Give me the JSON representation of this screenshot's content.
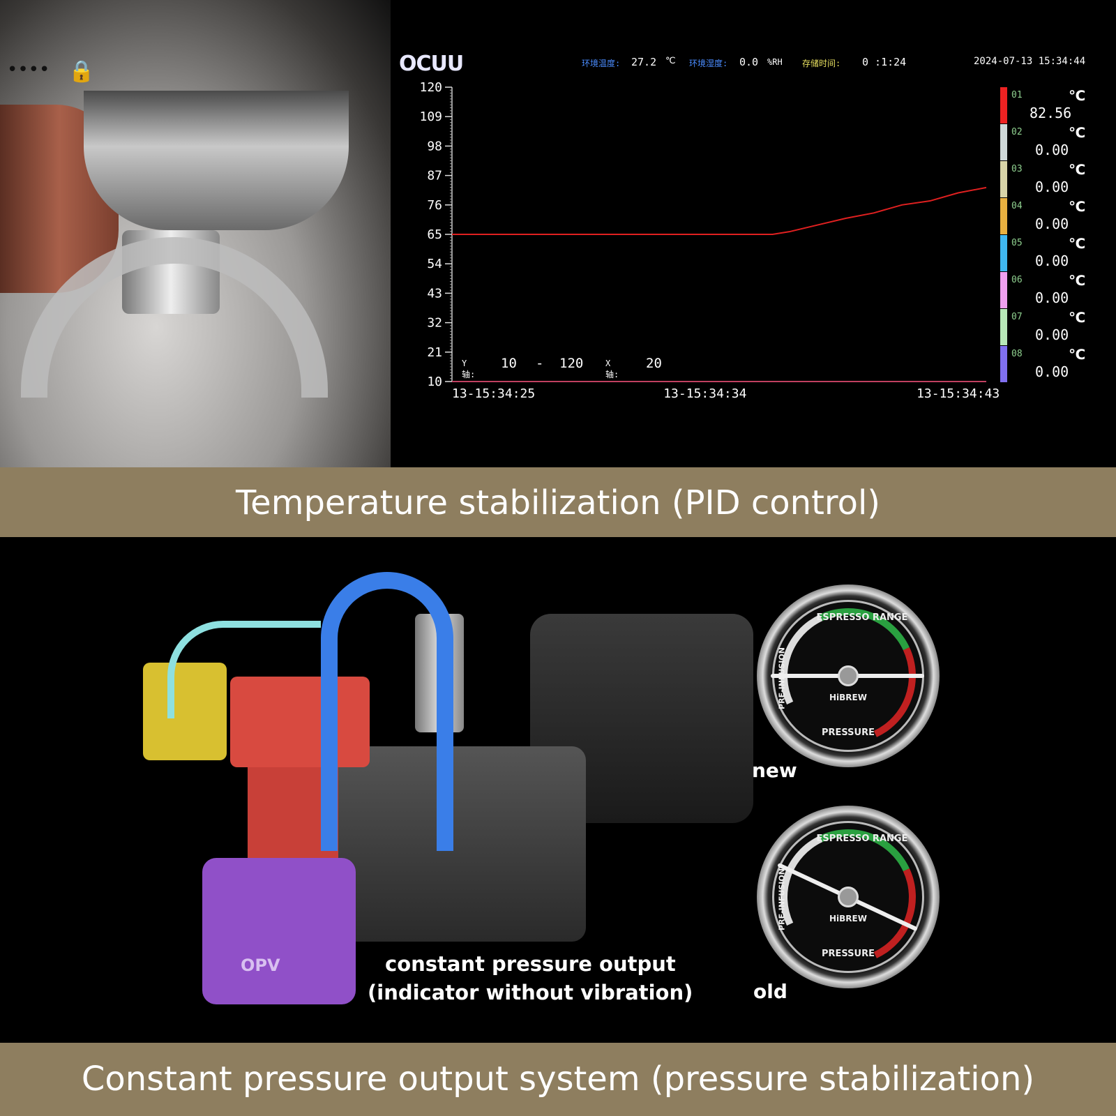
{
  "top_photo": {
    "lock_icon": "lock-icon"
  },
  "screen": {
    "logo": "OCUU",
    "ambient_temp_label": "环境温度:",
    "ambient_temp_value": "27.2",
    "ambient_temp_unit": "℃",
    "humidity_label": "环境湿度:",
    "humidity_value": "0.0",
    "humidity_unit": "%RH",
    "storage_time_label": "存储时间:",
    "storage_time_value": "0 :1:24",
    "datetime": "2024-07-13 15:34:44",
    "y_range_label": "Y轴:",
    "y_range_min": "10",
    "y_range_dash": "-",
    "y_range_max": "120",
    "x_range_label": "X轴:",
    "x_range_value": "20"
  },
  "chart_data": {
    "type": "line",
    "ylim": [
      10,
      120
    ],
    "y_ticks": [
      "120",
      "109",
      "98",
      "87",
      "76",
      "65",
      "54",
      "43",
      "32",
      "21",
      "10"
    ],
    "x_ticks": [
      "13-15:34:25",
      "13-15:34:34",
      "13-15:34:43"
    ],
    "x_tick_seconds": [
      25,
      34,
      43
    ],
    "xlim_seconds": [
      25,
      44
    ],
    "grid": false,
    "series": [
      {
        "name": "01",
        "color": "#e02020",
        "x": [
          25,
          30,
          36.4,
          37,
          38,
          39,
          40,
          41,
          42,
          43,
          44
        ],
        "y": [
          65,
          65,
          65,
          66,
          68.5,
          71,
          73,
          76,
          77.5,
          80.5,
          82.5
        ]
      }
    ],
    "legend": [
      {
        "name": "01",
        "color": "#ee2222",
        "value": "82.56",
        "unit": "℃"
      },
      {
        "name": "02",
        "color": "#cfd8d8",
        "value": "0.00",
        "unit": "℃"
      },
      {
        "name": "03",
        "color": "#d8d4a8",
        "value": "0.00",
        "unit": "℃"
      },
      {
        "name": "04",
        "color": "#e8b040",
        "value": "0.00",
        "unit": "℃"
      },
      {
        "name": "05",
        "color": "#40b8f0",
        "value": "0.00",
        "unit": "℃"
      },
      {
        "name": "06",
        "color": "#f0a0f0",
        "value": "0.00",
        "unit": "℃"
      },
      {
        "name": "07",
        "color": "#b8e8b8",
        "value": "0.00",
        "unit": "℃"
      },
      {
        "name": "08",
        "color": "#8070f0",
        "value": "0.00",
        "unit": "℃"
      }
    ]
  },
  "band1": "Temperature stabilization (PID control)",
  "band2": "Constant pressure output system (pressure stabilization)",
  "diagram": {
    "opv_label": "OPV",
    "caption_line1": "constant pressure output",
    "caption_line2": "(indicator without vibration)"
  },
  "gauges": [
    {
      "label": "new",
      "top_text": "ESPRESSO RANGE",
      "side_text": "PRE-INFUSION",
      "brand": "HiBREW",
      "bottom_text": "PRESSURE",
      "needle_angle": 0
    },
    {
      "label": "old",
      "top_text": "ESPRESSO RANGE",
      "side_text": "PRE-INFUSION",
      "brand": "HiBREW",
      "bottom_text": "PRESSURE",
      "needle_angle": 25
    }
  ],
  "colors": {
    "band": "#8e7e5f",
    "series": "#e02020"
  }
}
